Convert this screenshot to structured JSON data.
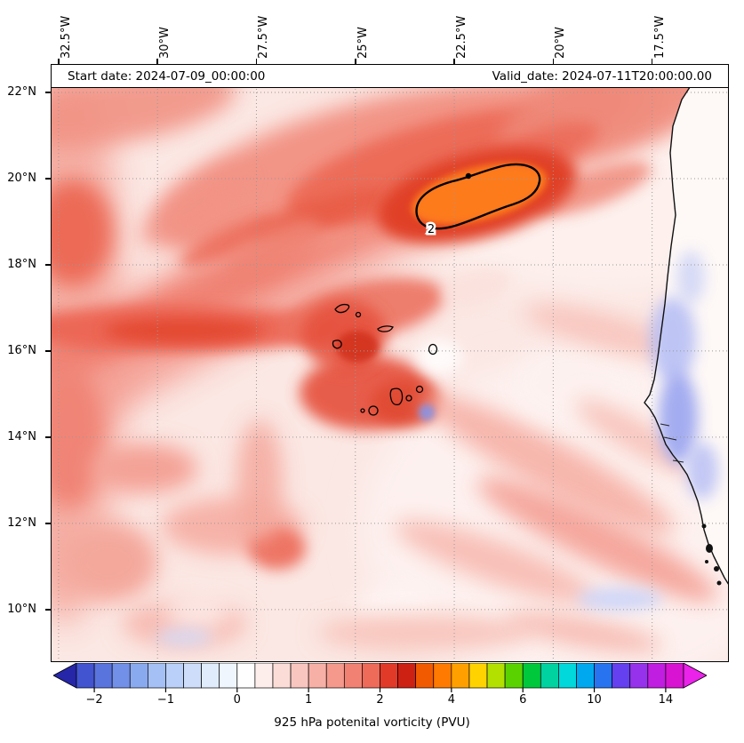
{
  "chart_data": {
    "type": "heatmap",
    "variable": "925 hPa potential vorticity",
    "units": "PVU",
    "start_date_text": "Start date: 2024-07-09_00:00:00",
    "valid_date_text": "Valid_date: 2024-07-11T20:00:00.00",
    "caption": "925 hPa potenital vorticity (PVU)",
    "x_axis": {
      "side": "top",
      "tick_labels": [
        "32.5°W",
        "30°W",
        "27.5°W",
        "25°W",
        "22.5°W",
        "20°W",
        "17.5°W"
      ],
      "tick_values_deg_west": [
        32.5,
        30,
        27.5,
        25,
        22.5,
        20,
        17.5
      ],
      "range_deg_west": [
        32.7,
        15.56
      ]
    },
    "y_axis": {
      "side": "left",
      "tick_labels": [
        "22°N",
        "20°N",
        "18°N",
        "16°N",
        "14°N",
        "12°N",
        "10°N"
      ],
      "tick_values_deg_north": [
        22,
        20,
        18,
        16,
        14,
        12,
        10
      ],
      "range_deg_north": [
        22.66,
        8.78
      ]
    },
    "grid": {
      "visible": true,
      "style": "dotted"
    },
    "colorbar": {
      "label": "925 hPa potenital vorticity (PVU)",
      "tick_labels": [
        "−2",
        "−1",
        "0",
        "1",
        "2",
        "4",
        "6",
        "10",
        "14"
      ],
      "tick_values": [
        -2,
        -1,
        0,
        1,
        2,
        4,
        6,
        10,
        14
      ],
      "tick_boundary_indices": [
        1,
        5,
        9,
        13,
        17,
        21,
        25,
        29,
        33
      ],
      "boundaries": [
        -2.25,
        -2,
        -1.75,
        -1.5,
        -1.25,
        -1,
        -0.75,
        -0.5,
        -0.25,
        0,
        0.25,
        0.5,
        0.75,
        1,
        1.25,
        1.5,
        1.75,
        2,
        2.5,
        3,
        3.5,
        4,
        4.5,
        5,
        5.5,
        6,
        7,
        8,
        9,
        10,
        11,
        12,
        13,
        14,
        15
      ],
      "colors": [
        "#4254d0",
        "#5a74de",
        "#7290e8",
        "#8aaaef",
        "#a4c0f4",
        "#bad0f8",
        "#cedefa",
        "#e0ecfc",
        "#f0f6fe",
        "#fefefe",
        "#fdeeec",
        "#fbdcd7",
        "#f9c6bf",
        "#f7b0a6",
        "#f4998c",
        "#f18273",
        "#ee6a59",
        "#e23a28",
        "#cd2114",
        "#f25a00",
        "#ff7a00",
        "#ffa000",
        "#ffd200",
        "#b4e000",
        "#5ad200",
        "#00c83c",
        "#00d2a0",
        "#00d8dc",
        "#00a8f0",
        "#2874f0",
        "#6440f0",
        "#9632ec",
        "#c01ee0",
        "#d814d2"
      ],
      "under_arrow_color": "#2626a8",
      "over_arrow_color": "#ea22ea"
    },
    "contour": {
      "level_pvu": 2,
      "label": "2",
      "approx_center": {
        "lon_deg_west": 21.9,
        "lat_deg_north": 19.6
      }
    },
    "map_features": [
      "Cape Verde islands coastlines",
      "West African coastline"
    ],
    "field_summary": {
      "max_region": "Closed 2 PVU contour with orange core (>3 PVU) centered near 22°W 19.5°N, elongated SW-NE",
      "general": "Broad positive PV (red shading, ~0.5-2 PVU) in SW-NE banded streaks across the domain; weak negative PV (blue) patches along the West African coast near 12-16°N and small scattered patches; strong PV also over the Cape Verde islands"
    }
  }
}
